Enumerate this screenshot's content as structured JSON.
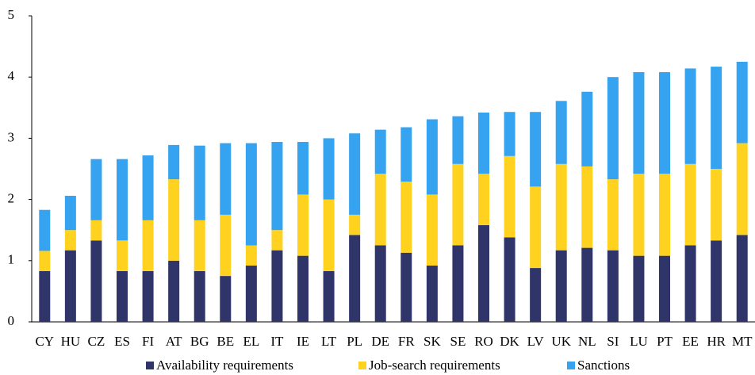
{
  "chart_data": {
    "type": "stacked_bar",
    "categories": [
      "CY",
      "HU",
      "CZ",
      "ES",
      "FI",
      "AT",
      "BG",
      "BE",
      "EL",
      "IT",
      "IE",
      "LT",
      "PL",
      "DE",
      "FR",
      "SK",
      "SE",
      "RO",
      "DK",
      "LV",
      "UK",
      "NL",
      "SI",
      "LU",
      "PT",
      "EE",
      "HR",
      "MT"
    ],
    "series": [
      {
        "name": "Availability requirements",
        "color": "#2f3469",
        "values": [
          0.83,
          1.17,
          1.33,
          0.83,
          0.83,
          1.0,
          0.83,
          0.75,
          0.92,
          1.17,
          1.08,
          0.83,
          1.42,
          1.25,
          1.13,
          0.92,
          1.25,
          1.58,
          1.38,
          0.88,
          1.17,
          1.21,
          1.17,
          1.08,
          1.08,
          1.25,
          1.33,
          1.42
        ]
      },
      {
        "name": "Job-search requirements",
        "color": "#ffd21f",
        "values": [
          0.33,
          0.33,
          0.33,
          0.5,
          0.83,
          1.33,
          0.83,
          1.0,
          0.33,
          0.33,
          1.0,
          1.17,
          0.33,
          1.17,
          1.16,
          1.16,
          1.33,
          0.84,
          1.33,
          1.33,
          1.41,
          1.33,
          1.16,
          1.34,
          1.34,
          1.33,
          1.17,
          1.5
        ]
      },
      {
        "name": "Sanctions",
        "color": "#36a3f0",
        "values": [
          0.67,
          0.56,
          1.0,
          1.33,
          1.06,
          0.56,
          1.22,
          1.17,
          1.67,
          1.44,
          0.86,
          1.0,
          1.33,
          0.72,
          0.89,
          1.23,
          0.78,
          1.0,
          0.72,
          1.22,
          1.03,
          1.22,
          1.67,
          1.66,
          1.66,
          1.56,
          1.67,
          1.33
        ]
      }
    ],
    "ylim": [
      0,
      5
    ],
    "yticks": [
      0,
      1,
      2,
      3,
      4,
      5
    ],
    "grid": false,
    "legend": "bottom"
  }
}
